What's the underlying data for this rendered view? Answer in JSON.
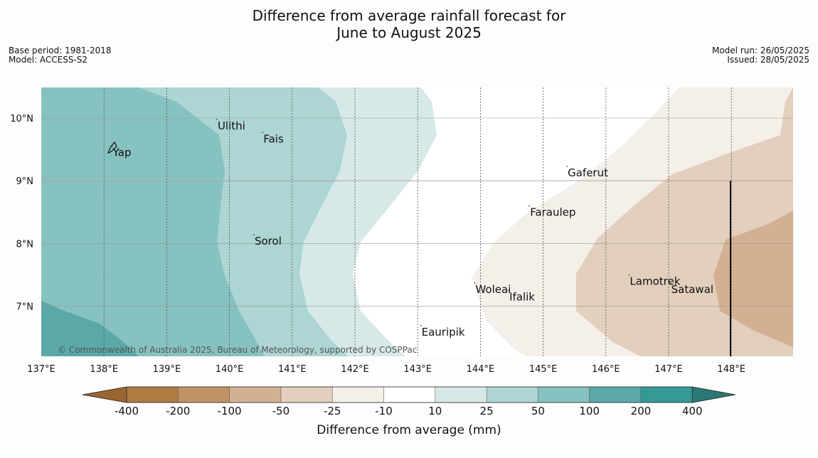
{
  "header": {
    "title_line1": "Difference from average rainfall forecast for",
    "title_line2": "June to August 2025",
    "base_period": "Base period: 1981-2018",
    "model": "Model: ACCESS-S2",
    "model_run": "Model run: 26/05/2025",
    "issued": "Issued: 28/05/2025"
  },
  "map": {
    "lon_labels": [
      "137°E",
      "138°E",
      "139°E",
      "140°E",
      "141°E",
      "142°E",
      "143°E",
      "144°E",
      "145°E",
      "146°E",
      "147°E",
      "148°E"
    ],
    "lat_labels": [
      "10°N",
      "9°N",
      "8°N",
      "7°N"
    ],
    "places": [
      {
        "name": "Ulithi",
        "lon": 139.8,
        "lat": 9.98
      },
      {
        "name": "Fais",
        "lon": 140.53,
        "lat": 9.77
      },
      {
        "name": "Yap",
        "lon": 138.13,
        "lat": 9.55
      },
      {
        "name": "Gaferut",
        "lon": 145.38,
        "lat": 9.23
      },
      {
        "name": "Faraulep",
        "lon": 144.78,
        "lat": 8.6
      },
      {
        "name": "Sorol",
        "lon": 140.39,
        "lat": 8.14
      },
      {
        "name": "Woleai",
        "lon": 143.91,
        "lat": 7.37
      },
      {
        "name": "Ifalik",
        "lon": 144.45,
        "lat": 7.25
      },
      {
        "name": "Lamotrek",
        "lon": 146.37,
        "lat": 7.5
      },
      {
        "name": "Satawal",
        "lon": 147.03,
        "lat": 7.37
      },
      {
        "name": "Eauripik",
        "lon": 143.05,
        "lat": 6.69
      }
    ],
    "copyright": "© Commonwealth of Australia 2025, Bureau of Meteorology, supported by COSPPac"
  },
  "colorbar": {
    "title": "Difference from average (mm)",
    "ticks": [
      "-400",
      "-200",
      "-100",
      "-50",
      "-25",
      "-10",
      "10",
      "25",
      "50",
      "100",
      "200",
      "400"
    ],
    "colors": [
      "#9a6530",
      "#b07a43",
      "#c29267",
      "#d4b092",
      "#e2cfbd",
      "#f4efe9",
      "#ffffff",
      "#d6e9e8",
      "#acd5d3",
      "#86c2c0",
      "#5aa9a8",
      "#359996",
      "#2b7877"
    ]
  }
}
